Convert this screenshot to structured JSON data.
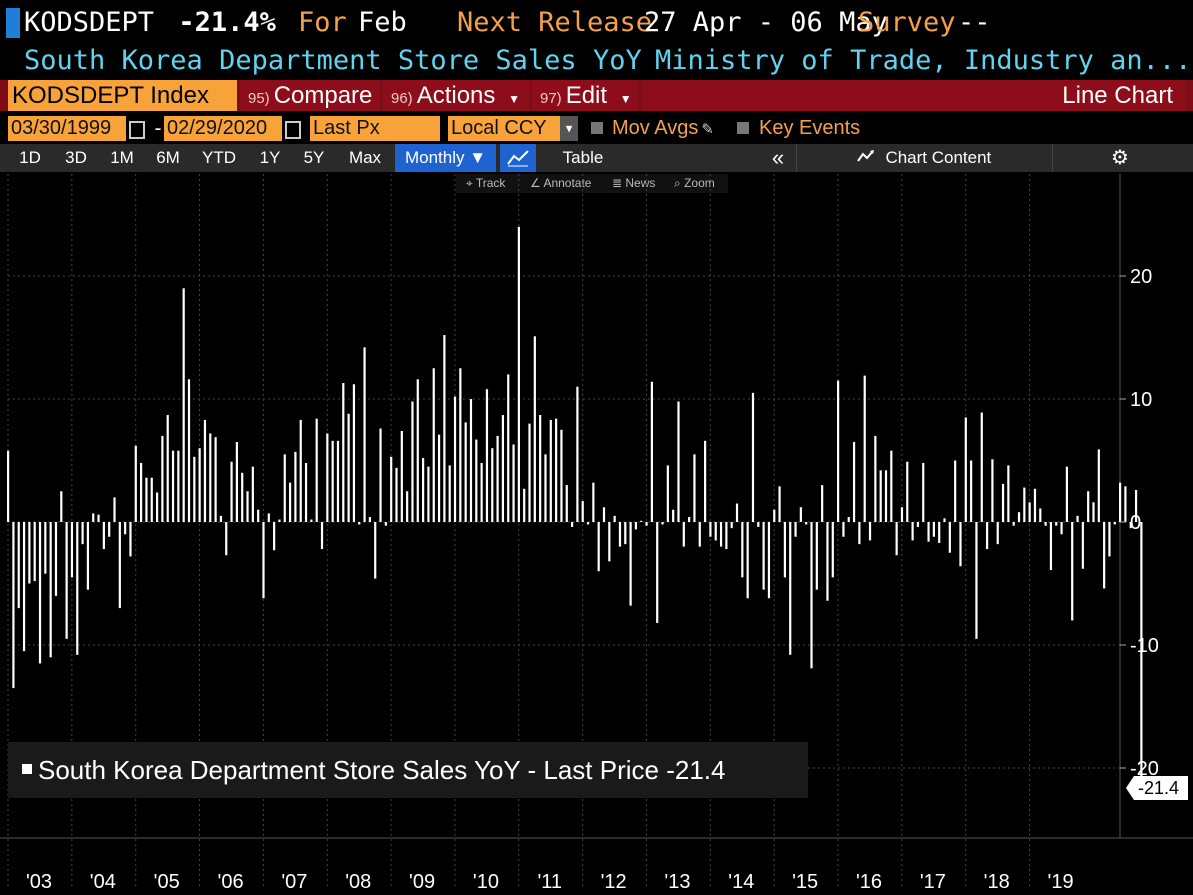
{
  "header": {
    "ticker": "KODSDEPT",
    "last_value": "-21.4%",
    "for_label": "For",
    "for_period": "Feb",
    "next_release_label": "Next Release",
    "next_release_dates": "27 Apr - 06 May",
    "survey_label": "Survey",
    "survey_value": "--",
    "description": "South Korea Department Store Sales YoY",
    "source": "Ministry of Trade, Industry an..."
  },
  "toolbar": {
    "security_field": "KODSDEPT Index",
    "compare_num": "95)",
    "compare_label": "Compare",
    "actions_num": "96)",
    "actions_label": "Actions",
    "edit_num": "97)",
    "edit_label": "Edit",
    "chart_type": "Line Chart",
    "start_date": "03/30/1999",
    "date_dash": "-",
    "end_date": "02/29/2020",
    "field": "Last Px",
    "currency": "Local CCY",
    "mov_avgs_label": "Mov Avgs",
    "key_events_label": "Key Events",
    "periods": [
      "1D",
      "3D",
      "1M",
      "6M",
      "YTD",
      "1Y",
      "5Y",
      "Max"
    ],
    "frequency": "Monthly ▼",
    "table_label": "Table",
    "collapse_glyph": "«",
    "chart_content_label": "Chart Content",
    "tools": [
      "Track",
      "Annotate",
      "News",
      "Zoom"
    ]
  },
  "colors": {
    "accent_blue": "#1f63d0",
    "toolbar_red": "#8d0e1a",
    "field_orange": "#f7a33a",
    "subtitle_cyan": "#5fd3ef"
  },
  "chart_data": {
    "type": "bar",
    "title": "",
    "legend": "South Korea Department Store Sales YoY - Last Price -21.4",
    "last_value_label": "-21.4",
    "ylim": [
      -25,
      27
    ],
    "yticks": [
      20,
      10,
      0,
      -10,
      -20
    ],
    "ytick_labels": [
      "20",
      "10",
      "0",
      "-10",
      "-20"
    ],
    "xlim": [
      "2003-01",
      "2020-06"
    ],
    "xtick_labels": [
      "'03",
      "'04",
      "'05",
      "'06",
      "'07",
      "'08",
      "'09",
      "'10",
      "'11",
      "'12",
      "'13",
      "'14",
      "'15",
      "'16",
      "'17",
      "'18",
      "'19"
    ],
    "x_start": "2003-01",
    "x_end": "2020-02",
    "values": [
      5.8,
      -13.5,
      -7.0,
      -10.5,
      -5.0,
      -4.8,
      -11.5,
      -4.2,
      -11.0,
      -6.0,
      2.5,
      -9.5,
      -4.5,
      -10.8,
      -1.8,
      -5.5,
      0.7,
      0.6,
      -2.2,
      -1.2,
      2.0,
      -7.0,
      -1.0,
      -2.8,
      6.2,
      4.8,
      3.6,
      3.6,
      2.4,
      7.0,
      8.7,
      5.8,
      5.8,
      19.0,
      11.6,
      5.3,
      6.0,
      8.3,
      7.2,
      6.9,
      0.5,
      -2.7,
      4.9,
      6.5,
      4.0,
      2.5,
      4.5,
      1.0,
      -6.2,
      0.7,
      -2.3,
      0.2,
      5.5,
      3.2,
      5.7,
      8.3,
      4.8,
      0.2,
      8.4,
      -2.2,
      7.2,
      6.6,
      6.6,
      11.3,
      8.8,
      11.2,
      -0.2,
      14.2,
      0.4,
      -4.6,
      7.6,
      -0.3,
      5.3,
      4.4,
      7.4,
      2.5,
      9.8,
      11.6,
      5.2,
      4.5,
      12.5,
      7.1,
      15.2,
      4.6,
      10.2,
      12.5,
      8.1,
      10.0,
      6.7,
      4.8,
      10.8,
      6.0,
      7.0,
      8.7,
      12.0,
      6.3,
      24.0,
      2.7,
      8.0,
      15.1,
      8.7,
      5.5,
      8.3,
      8.4,
      7.5,
      3.0,
      -0.4,
      11.0,
      1.7,
      -0.2,
      3.2,
      -4.0,
      1.2,
      -3.2,
      0.5,
      -2.0,
      -1.8,
      -6.8,
      -0.6,
      0.1,
      -0.3,
      11.4,
      -8.2,
      -0.2,
      4.6,
      1.0,
      9.8,
      -2.0,
      0.4,
      5.5,
      -2.0,
      6.6,
      -1.2,
      -1.5,
      -2.0,
      -2.2,
      -0.5,
      1.5,
      -4.5,
      -6.2,
      10.5,
      -0.4,
      -5.5,
      -6.2,
      1.0,
      2.9,
      -4.5,
      -10.8,
      -1.2,
      1.2,
      -0.2,
      -11.9,
      -5.5,
      3.0,
      -6.4,
      -4.5,
      11.5,
      -1.2,
      0.4,
      6.5,
      -1.8,
      11.9,
      -1.5,
      7.0,
      4.2,
      4.2,
      5.8,
      -2.7,
      1.2,
      4.9,
      -1.5,
      -0.4,
      4.8,
      -1.6,
      -1.2,
      -1.7,
      0.3,
      -2.5,
      5.0,
      -3.6,
      8.5,
      5.0,
      -9.5,
      8.9,
      -2.2,
      5.1,
      -1.8,
      3.1,
      4.6,
      -0.3,
      0.8,
      2.8,
      1.6,
      2.7,
      1.1,
      -0.3,
      -3.9,
      -0.3,
      -1.0,
      4.5,
      -8.0,
      0.5,
      -3.8,
      2.5,
      1.6,
      5.9,
      -5.4,
      -2.8,
      -0.2,
      3.2,
      2.9,
      -0.5,
      2.6,
      -21.4
    ]
  }
}
